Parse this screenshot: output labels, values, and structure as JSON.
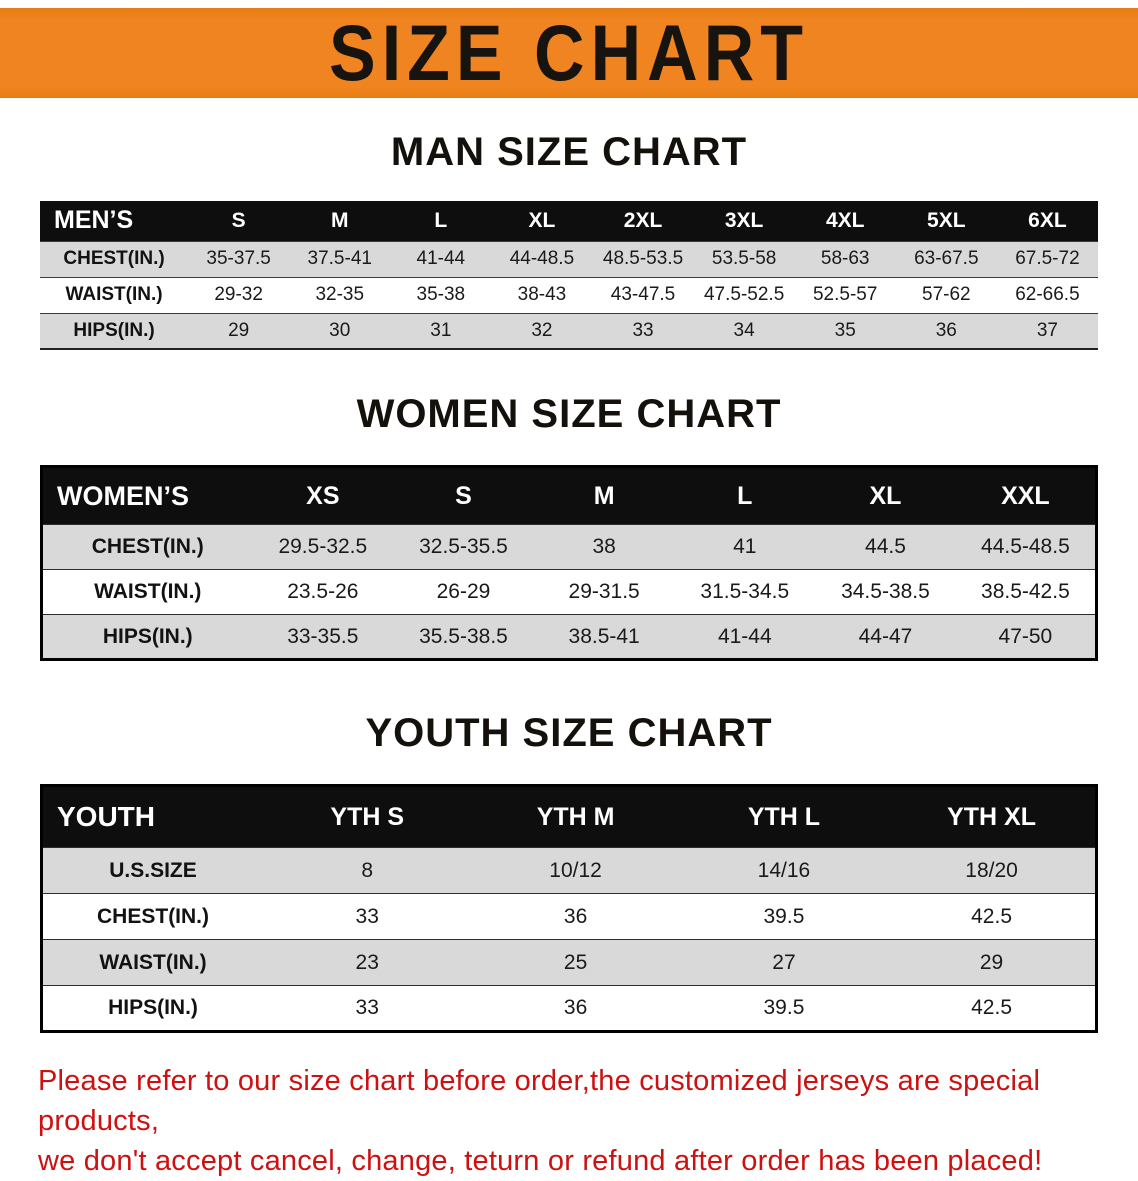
{
  "banner": {
    "title": "SIZE CHART"
  },
  "colors": {
    "banner_bg": "#f08420",
    "header_bg": "#0e0e0e",
    "row_shaded": "#d9d9d9",
    "disclaimer_red": "#cd1111"
  },
  "sections": [
    {
      "id": "men",
      "heading": "MAN SIZE CHART",
      "table": {
        "header": [
          "MEN’S",
          "S",
          "M",
          "L",
          "XL",
          "2XL",
          "3XL",
          "4XL",
          "5XL",
          "6XL"
        ],
        "rows": [
          [
            "CHEST(IN.)",
            "35-37.5",
            "37.5-41",
            "41-44",
            "44-48.5",
            "48.5-53.5",
            "53.5-58",
            "58-63",
            "63-67.5",
            "67.5-72"
          ],
          [
            "WAIST(IN.)",
            "29-32",
            "32-35",
            "35-38",
            "38-43",
            "43-47.5",
            "47.5-52.5",
            "52.5-57",
            "57-62",
            "62-66.5"
          ],
          [
            "HIPS(IN.)",
            "29",
            "30",
            "31",
            "32",
            "33",
            "34",
            "35",
            "36",
            "37"
          ]
        ]
      }
    },
    {
      "id": "women",
      "heading": "WOMEN SIZE CHART",
      "table": {
        "header": [
          "WOMEN’S",
          "XS",
          "S",
          "M",
          "L",
          "XL",
          "XXL"
        ],
        "rows": [
          [
            "CHEST(IN.)",
            "29.5-32.5",
            "32.5-35.5",
            "38",
            "41",
            "44.5",
            "44.5-48.5"
          ],
          [
            "WAIST(IN.)",
            "23.5-26",
            "26-29",
            "29-31.5",
            "31.5-34.5",
            "34.5-38.5",
            "38.5-42.5"
          ],
          [
            "HIPS(IN.)",
            "33-35.5",
            "35.5-38.5",
            "38.5-41",
            "41-44",
            "44-47",
            "47-50"
          ]
        ]
      }
    },
    {
      "id": "youth",
      "heading": "YOUTH SIZE CHART",
      "table": {
        "header": [
          "YOUTH",
          "YTH S",
          "YTH M",
          "YTH L",
          "YTH XL"
        ],
        "rows": [
          [
            "U.S.SIZE",
            "8",
            "10/12",
            "14/16",
            "18/20"
          ],
          [
            "CHEST(IN.)",
            "33",
            "36",
            "39.5",
            "42.5"
          ],
          [
            "WAIST(IN.)",
            "23",
            "25",
            "27",
            "29"
          ],
          [
            "HIPS(IN.)",
            "33",
            "36",
            "39.5",
            "42.5"
          ]
        ]
      }
    }
  ],
  "disclaimer": {
    "line1": "Please refer to our size chart before order,the customized jerseys are special products,",
    "line2": "we don't accept cancel, change, teturn or refund after order has been placed!"
  }
}
